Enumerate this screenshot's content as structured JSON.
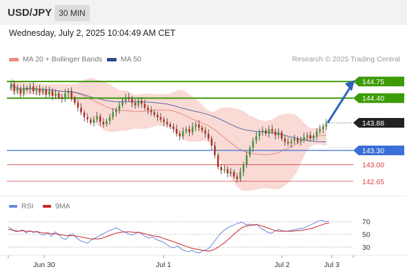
{
  "header": {
    "symbol": "USD/JPY",
    "timeframe": "30 MIN"
  },
  "date_line": "Wednesday, July 2, 2025 10:04:49 AM CET",
  "legend": {
    "ma20_label": "MA 20 + Bollinger Bands",
    "ma50_label": "MA 50",
    "copyright": "Research © 2025 Trading Central"
  },
  "rsi_legend": {
    "rsi_label": "RSI",
    "ma9_label": "9MA"
  },
  "colors": {
    "resistance": "#3e9b08",
    "pivot": "#3a6fd8",
    "support": "#d84040",
    "candle_up": "#3a9a3a",
    "candle_down": "#b03020",
    "bollinger_fill": "#f8d6d0",
    "ma20": "#e58b80",
    "ma50": "#5a6aa8",
    "rsi": "#6688dd",
    "rsi_ma": "#cc2222",
    "arrow": "#2d62b8"
  },
  "chart_data": [
    {
      "type": "candlestick",
      "symbol": "USD/JPY",
      "timeframe": "30 MIN",
      "ylim": [
        142.4,
        145.1
      ],
      "x_ticks": [
        "Jun 30",
        "Jul 1",
        "Jul 2",
        "Jul 3"
      ],
      "price_levels": [
        {
          "value": 144.75,
          "label": "144.75",
          "kind": "resistance"
        },
        {
          "value": 144.4,
          "label": "144.40",
          "kind": "resistance"
        },
        {
          "value": 143.88,
          "label": "143.88",
          "kind": "last"
        },
        {
          "value": 143.3,
          "label": "143.30",
          "kind": "pivot"
        },
        {
          "value": 143.0,
          "label": "143.00",
          "kind": "support"
        },
        {
          "value": 142.65,
          "label": "142.65",
          "kind": "support"
        }
      ],
      "close": [
        144.7,
        144.55,
        144.6,
        144.5,
        144.62,
        144.58,
        144.65,
        144.55,
        144.6,
        144.52,
        144.58,
        144.48,
        144.55,
        144.45,
        144.5,
        144.42,
        144.38,
        144.5,
        144.55,
        144.4,
        144.3,
        144.2,
        144.1,
        144.0,
        143.95,
        143.88,
        143.95,
        144.02,
        143.9,
        143.85,
        143.92,
        144.0,
        144.1,
        144.15,
        144.25,
        144.35,
        144.42,
        144.38,
        144.3,
        144.25,
        144.35,
        144.28,
        144.2,
        144.15,
        144.1,
        144.05,
        144.0,
        143.95,
        143.9,
        143.85,
        143.8,
        143.75,
        143.65,
        143.6,
        143.7,
        143.75,
        143.68,
        143.8,
        143.85,
        143.78,
        143.72,
        143.65,
        143.55,
        143.4,
        143.2,
        142.95,
        142.88,
        142.9,
        142.82,
        142.85,
        142.75,
        142.7,
        142.85,
        143.0,
        143.2,
        143.35,
        143.5,
        143.6,
        143.68,
        143.72,
        143.65,
        143.75,
        143.7,
        143.62,
        143.68,
        143.55,
        143.48,
        143.45,
        143.5,
        143.55,
        143.48,
        143.52,
        143.58,
        143.62,
        143.55,
        143.6,
        143.7,
        143.75,
        143.8,
        143.88
      ],
      "open": [
        144.6,
        144.7,
        144.55,
        144.6,
        144.5,
        144.62,
        144.58,
        144.65,
        144.55,
        144.6,
        144.52,
        144.58,
        144.48,
        144.55,
        144.45,
        144.5,
        144.42,
        144.38,
        144.5,
        144.55,
        144.4,
        144.3,
        144.2,
        144.1,
        144.0,
        143.95,
        143.88,
        143.95,
        144.02,
        143.9,
        143.85,
        143.92,
        144.0,
        144.1,
        144.15,
        144.25,
        144.35,
        144.42,
        144.38,
        144.3,
        144.25,
        144.35,
        144.28,
        144.2,
        144.15,
        144.1,
        144.05,
        144.0,
        143.95,
        143.9,
        143.85,
        143.8,
        143.75,
        143.65,
        143.6,
        143.7,
        143.75,
        143.68,
        143.8,
        143.85,
        143.78,
        143.72,
        143.65,
        143.55,
        143.4,
        143.2,
        142.95,
        142.88,
        142.9,
        142.82,
        142.85,
        142.75,
        142.7,
        142.85,
        143.0,
        143.2,
        143.35,
        143.5,
        143.6,
        143.68,
        143.72,
        143.65,
        143.75,
        143.7,
        143.62,
        143.68,
        143.55,
        143.48,
        143.45,
        143.5,
        143.55,
        143.48,
        143.52,
        143.58,
        143.62,
        143.55,
        143.6,
        143.7,
        143.75,
        143.8
      ],
      "forecast_arrow": {
        "from": 143.88,
        "to": 144.75
      }
    },
    {
      "type": "line",
      "title": "RSI",
      "ylim": [
        15,
        80
      ],
      "y_ticks": [
        70,
        50,
        30
      ],
      "x_ticks": [
        "Jun 30",
        "Jul 1",
        "Jul 2",
        "Jul 3"
      ],
      "series": [
        {
          "name": "RSI",
          "values": [
            62,
            58,
            54,
            55,
            57,
            52,
            56,
            53,
            55,
            50,
            49,
            52,
            47,
            54,
            50,
            44,
            42,
            49,
            51,
            44,
            40,
            38,
            36,
            41,
            44,
            47,
            50,
            53,
            56,
            58,
            60,
            57,
            54,
            52,
            49,
            50,
            54,
            51,
            47,
            44,
            46,
            42,
            40,
            38,
            34,
            30,
            29,
            32,
            27,
            24,
            23,
            25,
            22,
            21,
            24,
            26,
            30,
            38,
            45,
            52,
            57,
            61,
            63,
            66,
            68,
            69,
            65,
            66,
            64,
            66,
            60,
            57,
            53,
            52,
            55,
            58,
            56,
            55,
            56,
            57,
            58,
            59,
            60,
            63,
            65,
            68,
            71,
            72,
            70,
            71
          ]
        },
        {
          "name": "9MA",
          "values": [
            58,
            57,
            56,
            55,
            56,
            55,
            55,
            54,
            54,
            53,
            52,
            52,
            51,
            51,
            50,
            49,
            48,
            48,
            48,
            47,
            46,
            45,
            44,
            43,
            43,
            43,
            44,
            46,
            48,
            50,
            52,
            53,
            54,
            54,
            54,
            53,
            53,
            52,
            51,
            49,
            48,
            47,
            46,
            44,
            42,
            40,
            38,
            36,
            34,
            32,
            30,
            28,
            27,
            26,
            25,
            24,
            24,
            26,
            29,
            33,
            37,
            42,
            47,
            52,
            57,
            61,
            63,
            64,
            65,
            65,
            64,
            62,
            60,
            58,
            56,
            55,
            55,
            55,
            55,
            55,
            56,
            56,
            57,
            58,
            59,
            61,
            63,
            65,
            67,
            68
          ]
        }
      ]
    }
  ]
}
